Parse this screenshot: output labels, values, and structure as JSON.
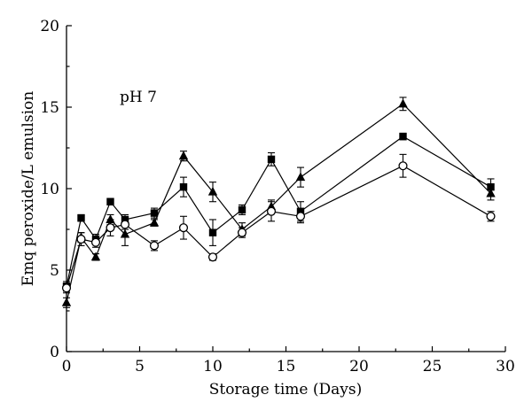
{
  "chart_data": {
    "type": "line",
    "annotation": "pH 7",
    "xlabel": "Storage time (Days)",
    "ylabel": "Emq peroxide/L emulsion",
    "xlim": [
      0,
      30
    ],
    "ylim": [
      0,
      20
    ],
    "xticks": [
      "0",
      "5",
      "10",
      "15",
      "20",
      "25",
      "30"
    ],
    "yticks": [
      "0",
      "5",
      "10",
      "15",
      "20"
    ],
    "grid": false,
    "series": [
      {
        "marker": "square-filled",
        "color": "#000000",
        "points": [
          {
            "x": 0,
            "y": 4.0,
            "err": 0.3
          },
          {
            "x": 1,
            "y": 8.2,
            "err": 0.2
          },
          {
            "x": 2,
            "y": 6.9,
            "err": 0.3
          },
          {
            "x": 3,
            "y": 9.2,
            "err": 0.2
          },
          {
            "x": 4,
            "y": 8.1,
            "err": 0.3
          },
          {
            "x": 6,
            "y": 8.5,
            "err": 0.3
          },
          {
            "x": 8,
            "y": 10.1,
            "err": 0.6
          },
          {
            "x": 10,
            "y": 7.3,
            "err": 0.8
          },
          {
            "x": 12,
            "y": 8.7,
            "err": 0.3
          },
          {
            "x": 14,
            "y": 11.8,
            "err": 0.4
          },
          {
            "x": 16,
            "y": 8.6,
            "err": 0.6
          },
          {
            "x": 23,
            "y": 13.2,
            "err": 0.2
          },
          {
            "x": 29,
            "y": 10.1,
            "err": 0.5
          }
        ]
      },
      {
        "marker": "triangle-filled",
        "color": "#000000",
        "points": [
          {
            "x": 0,
            "y": 3.0,
            "err": 0.3
          },
          {
            "x": 1,
            "y": 7.0,
            "err": 0.3
          },
          {
            "x": 2,
            "y": 5.8,
            "err": 0.2
          },
          {
            "x": 3,
            "y": 8.1,
            "err": 0.3
          },
          {
            "x": 4,
            "y": 7.2,
            "err": 0.7
          },
          {
            "x": 6,
            "y": 7.9,
            "err": 0.2
          },
          {
            "x": 8,
            "y": 12.0,
            "err": 0.3
          },
          {
            "x": 10,
            "y": 9.8,
            "err": 0.6
          },
          {
            "x": 12,
            "y": 7.5,
            "err": 0.4
          },
          {
            "x": 14,
            "y": 8.9,
            "err": 0.4
          },
          {
            "x": 16,
            "y": 10.7,
            "err": 0.6
          },
          {
            "x": 23,
            "y": 15.2,
            "err": 0.4
          },
          {
            "x": 29,
            "y": 9.7,
            "err": 0.4
          }
        ]
      },
      {
        "marker": "circle-open",
        "color": "#000000",
        "points": [
          {
            "x": 0,
            "y": 3.9,
            "err": 0.3
          },
          {
            "x": 1,
            "y": 6.9,
            "err": 0.4
          },
          {
            "x": 2,
            "y": 6.7,
            "err": 0.3
          },
          {
            "x": 3,
            "y": 7.6,
            "err": 0.5
          },
          {
            "x": 4,
            "y": 7.8,
            "err": 0.3
          },
          {
            "x": 6,
            "y": 6.5,
            "err": 0.3
          },
          {
            "x": 8,
            "y": 7.6,
            "err": 0.7
          },
          {
            "x": 10,
            "y": 5.8,
            "err": 0.2
          },
          {
            "x": 12,
            "y": 7.3,
            "err": 0.3
          },
          {
            "x": 14,
            "y": 8.6,
            "err": 0.6
          },
          {
            "x": 16,
            "y": 8.3,
            "err": 0.4
          },
          {
            "x": 23,
            "y": 11.4,
            "err": 0.7
          },
          {
            "x": 29,
            "y": 8.3,
            "err": 0.3
          }
        ]
      }
    ]
  }
}
